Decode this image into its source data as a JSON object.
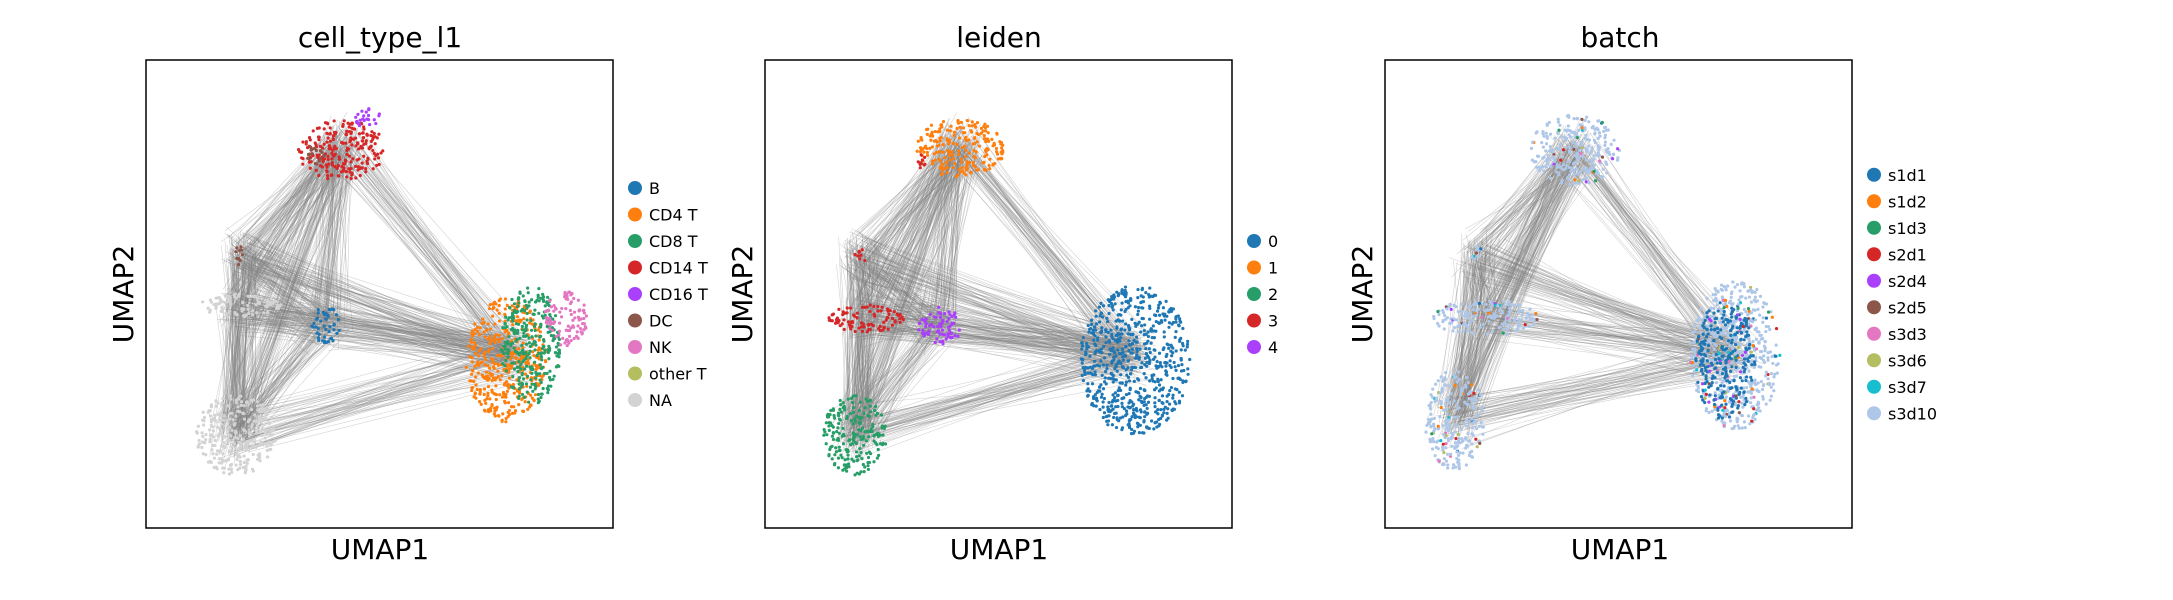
{
  "chart_data": [
    {
      "type": "scatter",
      "title": "cell_type_l1",
      "xlabel": "UMAP1",
      "ylabel": "UMAP2",
      "grid": false,
      "legend_position": "right",
      "legend": [
        {
          "label": "B",
          "color": "#1f77b4"
        },
        {
          "label": "CD4 T",
          "color": "#ff7f0e"
        },
        {
          "label": "CD8 T",
          "color": "#279e68"
        },
        {
          "label": "CD14 T",
          "color": "#d62728"
        },
        {
          "label": "CD16 T",
          "color": "#aa40fc"
        },
        {
          "label": "DC",
          "color": "#8c564b"
        },
        {
          "label": "NK",
          "color": "#e377c2"
        },
        {
          "label": "other T",
          "color": "#b5bd61"
        },
        {
          "label": "NA",
          "color": "#d3d3d3"
        }
      ]
    },
    {
      "type": "scatter",
      "title": "leiden",
      "xlabel": "UMAP1",
      "ylabel": "UMAP2",
      "grid": false,
      "legend_position": "right",
      "legend": [
        {
          "label": "0",
          "color": "#1f77b4"
        },
        {
          "label": "1",
          "color": "#ff7f0e"
        },
        {
          "label": "2",
          "color": "#279e68"
        },
        {
          "label": "3",
          "color": "#d62728"
        },
        {
          "label": "4",
          "color": "#aa40fc"
        }
      ]
    },
    {
      "type": "scatter",
      "title": "batch",
      "xlabel": "UMAP1",
      "ylabel": "UMAP2",
      "grid": false,
      "legend_position": "right",
      "legend": [
        {
          "label": "s1d1",
          "color": "#1f77b4"
        },
        {
          "label": "s1d2",
          "color": "#ff7f0e"
        },
        {
          "label": "s1d3",
          "color": "#279e68"
        },
        {
          "label": "s2d1",
          "color": "#d62728"
        },
        {
          "label": "s2d4",
          "color": "#aa40fc"
        },
        {
          "label": "s2d5",
          "color": "#8c564b"
        },
        {
          "label": "s3d3",
          "color": "#e377c2"
        },
        {
          "label": "s3d6",
          "color": "#b5bd61"
        },
        {
          "label": "s3d7",
          "color": "#17becf"
        },
        {
          "label": "s3d10",
          "color": "#aec7e8"
        }
      ]
    }
  ],
  "edge_color": "#808080"
}
